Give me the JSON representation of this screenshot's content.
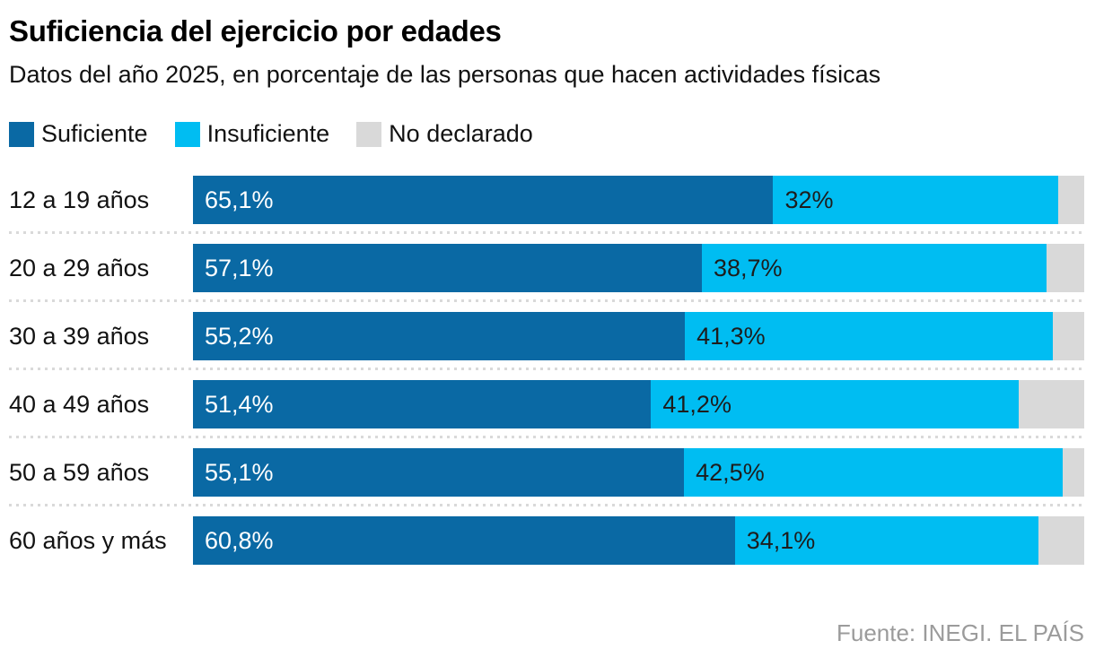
{
  "header": {
    "title": "Suficiencia del ejercicio por edades",
    "subtitle": "Datos del año 2025, en porcentaje de las personas que hacen actividades físicas"
  },
  "legend": [
    {
      "label": "Suficiente",
      "color": "#0a69a4"
    },
    {
      "label": "Insuficiente",
      "color": "#00bdf2"
    },
    {
      "label": "No declarado",
      "color": "#d9d9d9"
    }
  ],
  "source": "Fuente: INEGI. EL PAÍS",
  "colors": {
    "suficiente": "#0a69a4",
    "insuficiente": "#00bdf2",
    "no_declarado": "#d9d9d9",
    "separator": "#d9d9d9",
    "source_text": "#9b9b9b"
  },
  "chart_data": {
    "type": "bar",
    "orientation": "horizontal",
    "stacked": true,
    "title": "Suficiencia del ejercicio por edades",
    "subtitle": "Datos del año 2025, en porcentaje de las personas que hacen actividades físicas",
    "xlabel": "",
    "ylabel": "",
    "xlim": [
      0,
      100
    ],
    "grid": false,
    "legend_position": "top",
    "categories": [
      "12 a 19 años",
      "20 a 29 años",
      "30 a 39 años",
      "40 a 49 años",
      "50 a 59 años",
      "60 años y más"
    ],
    "series": [
      {
        "name": "Suficiente",
        "color": "#0a69a4",
        "label_color": "#ffffff",
        "values": [
          65.1,
          57.1,
          55.2,
          51.4,
          55.1,
          60.8
        ],
        "labels": [
          "65,1%",
          "57,1%",
          "55,2%",
          "51,4%",
          "55,1%",
          "60,8%"
        ]
      },
      {
        "name": "Insuficiente",
        "color": "#00bdf2",
        "label_color": "#1d1d1d",
        "values": [
          32,
          38.7,
          41.3,
          41.2,
          42.5,
          34.1
        ],
        "labels": [
          "32%",
          "38,7%",
          "41,3%",
          "41,2%",
          "42,5%",
          "34,1%"
        ]
      },
      {
        "name": "No declarado",
        "color": "#d9d9d9",
        "label_color": "#1d1d1d",
        "values": [
          2.9,
          4.2,
          3.5,
          7.4,
          2.4,
          5.1
        ],
        "labels": [
          "",
          "",
          "",
          "",
          "",
          ""
        ]
      }
    ]
  }
}
